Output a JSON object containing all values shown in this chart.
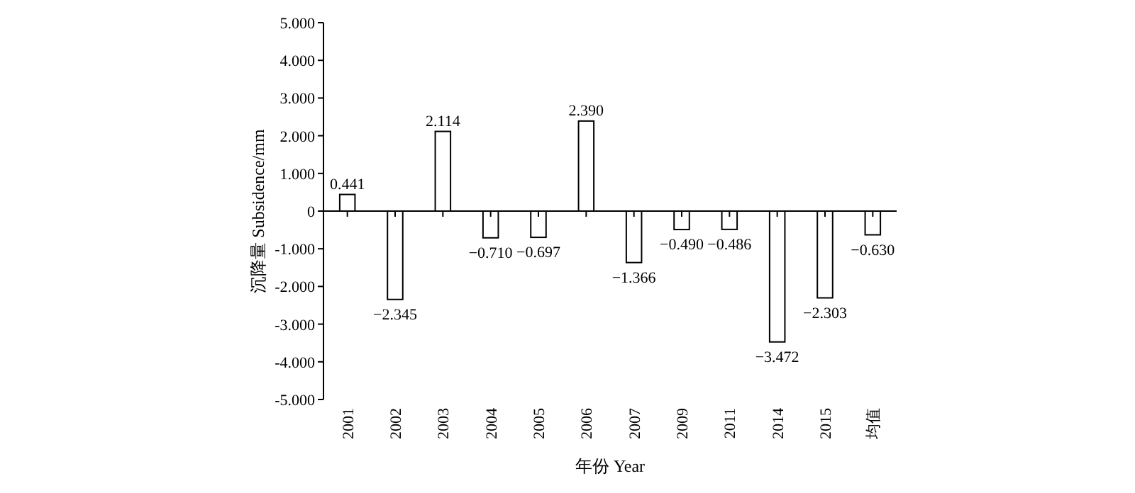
{
  "chart_data": {
    "type": "bar",
    "xlabel": "年份 Year",
    "ylabel": "沉降量 Subsidence/mm",
    "categories": [
      "2001",
      "2002",
      "2003",
      "2004",
      "2005",
      "2006",
      "2007",
      "2009",
      "2011",
      "2014",
      "2015",
      "均值"
    ],
    "values": [
      0.441,
      -2.345,
      2.114,
      -0.71,
      -0.697,
      2.39,
      -1.366,
      -0.49,
      -0.486,
      -3.472,
      -2.303,
      -0.63
    ],
    "value_labels": [
      "0.441",
      "−2.345",
      "2.114",
      "−0.710",
      "−0.697",
      "2.390",
      "−1.366",
      "−0.490",
      "−0.486",
      "−3.472",
      "−2.303",
      "−0.630"
    ],
    "color": "#ffffff",
    "ylim": [
      -5,
      5
    ],
    "yticks": [
      {
        "value": 5,
        "label": "5.000"
      },
      {
        "value": 4,
        "label": "4.000"
      },
      {
        "value": 3,
        "label": "3.000"
      },
      {
        "value": 2,
        "label": "2.000"
      },
      {
        "value": 1,
        "label": "1.000"
      },
      {
        "value": 0,
        "label": "0"
      },
      {
        "value": -1,
        "label": "-1.000"
      },
      {
        "value": -2,
        "label": "-2.000"
      },
      {
        "value": -3,
        "label": "-3.000"
      },
      {
        "value": -4,
        "label": "-4.000"
      },
      {
        "value": -5,
        "label": "-5.000"
      }
    ]
  }
}
